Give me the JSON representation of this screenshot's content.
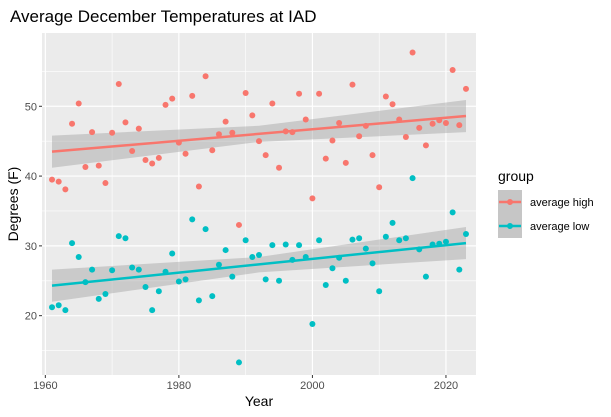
{
  "chart_data": {
    "type": "scatter",
    "title": "Average December Temperatures at IAD",
    "xlabel": "Year",
    "ylabel": "Degrees (F)",
    "xlim": [
      1959.5,
      2024.5
    ],
    "ylim": [
      11.5,
      60.5
    ],
    "x_ticks": [
      1960,
      1980,
      2000,
      2020
    ],
    "y_ticks": [
      20,
      30,
      40,
      50
    ],
    "grid": true,
    "legend": {
      "title": "group",
      "position": "right"
    },
    "series": [
      {
        "name": "average high",
        "color": "#F8766D",
        "points": [
          [
            1961,
            39.5
          ],
          [
            1962,
            39.2
          ],
          [
            1963,
            38.1
          ],
          [
            1964,
            47.5
          ],
          [
            1965,
            50.4
          ],
          [
            1966,
            41.3
          ],
          [
            1967,
            46.3
          ],
          [
            1968,
            41.5
          ],
          [
            1969,
            39.0
          ],
          [
            1970,
            46.2
          ],
          [
            1971,
            53.2
          ],
          [
            1972,
            47.7
          ],
          [
            1973,
            43.6
          ],
          [
            1974,
            46.8
          ],
          [
            1975,
            42.3
          ],
          [
            1976,
            41.8
          ],
          [
            1977,
            42.6
          ],
          [
            1978,
            50.2
          ],
          [
            1979,
            51.1
          ],
          [
            1980,
            44.8
          ],
          [
            1981,
            43.2
          ],
          [
            1982,
            51.5
          ],
          [
            1983,
            38.5
          ],
          [
            1984,
            54.3
          ],
          [
            1985,
            43.7
          ],
          [
            1986,
            46.0
          ],
          [
            1987,
            47.8
          ],
          [
            1988,
            46.2
          ],
          [
            1989,
            33.0
          ],
          [
            1990,
            51.9
          ],
          [
            1991,
            48.7
          ],
          [
            1992,
            45.0
          ],
          [
            1993,
            43.0
          ],
          [
            1994,
            50.4
          ],
          [
            1995,
            41.2
          ],
          [
            1996,
            46.4
          ],
          [
            1997,
            46.3
          ],
          [
            1998,
            51.8
          ],
          [
            1999,
            48.1
          ],
          [
            2000,
            36.8
          ],
          [
            2001,
            51.8
          ],
          [
            2002,
            42.5
          ],
          [
            2003,
            45.1
          ],
          [
            2004,
            47.6
          ],
          [
            2005,
            41.9
          ],
          [
            2006,
            53.1
          ],
          [
            2007,
            45.7
          ],
          [
            2008,
            47.2
          ],
          [
            2009,
            43.0
          ],
          [
            2010,
            38.4
          ],
          [
            2011,
            51.4
          ],
          [
            2012,
            50.3
          ],
          [
            2013,
            48.1
          ],
          [
            2014,
            45.6
          ],
          [
            2015,
            57.7
          ],
          [
            2016,
            46.9
          ],
          [
            2017,
            44.4
          ],
          [
            2018,
            47.5
          ],
          [
            2019,
            48.0
          ],
          [
            2020,
            47.6
          ],
          [
            2021,
            55.2
          ],
          [
            2022,
            47.3
          ],
          [
            2023,
            52.5
          ]
        ],
        "trend": {
          "start": [
            1961,
            43.5
          ],
          "end": [
            2023,
            48.6
          ]
        },
        "ci_band": {
          "start": [
            41.2,
            45.8
          ],
          "mid": [
            44.9,
            47.2
          ],
          "end": [
            46.3,
            50.9
          ]
        }
      },
      {
        "name": "average low",
        "color": "#00BFC4",
        "points": [
          [
            1961,
            21.2
          ],
          [
            1962,
            21.5
          ],
          [
            1963,
            20.8
          ],
          [
            1964,
            30.4
          ],
          [
            1965,
            28.4
          ],
          [
            1966,
            24.8
          ],
          [
            1967,
            26.6
          ],
          [
            1968,
            22.4
          ],
          [
            1969,
            23.1
          ],
          [
            1970,
            26.5
          ],
          [
            1971,
            31.4
          ],
          [
            1972,
            31.1
          ],
          [
            1973,
            26.9
          ],
          [
            1974,
            26.6
          ],
          [
            1975,
            24.1
          ],
          [
            1976,
            20.8
          ],
          [
            1977,
            23.5
          ],
          [
            1978,
            26.3
          ],
          [
            1979,
            28.9
          ],
          [
            1980,
            24.9
          ],
          [
            1981,
            25.2
          ],
          [
            1982,
            33.8
          ],
          [
            1983,
            22.2
          ],
          [
            1984,
            32.4
          ],
          [
            1985,
            22.8
          ],
          [
            1986,
            27.3
          ],
          [
            1987,
            29.4
          ],
          [
            1988,
            25.6
          ],
          [
            1989,
            13.3
          ],
          [
            1990,
            30.8
          ],
          [
            1991,
            28.4
          ],
          [
            1992,
            28.7
          ],
          [
            1993,
            25.2
          ],
          [
            1994,
            30.1
          ],
          [
            1995,
            25.0
          ],
          [
            1996,
            30.2
          ],
          [
            1997,
            28.0
          ],
          [
            1998,
            30.1
          ],
          [
            1999,
            28.4
          ],
          [
            2000,
            18.8
          ],
          [
            2001,
            30.8
          ],
          [
            2002,
            24.4
          ],
          [
            2003,
            26.8
          ],
          [
            2004,
            28.3
          ],
          [
            2005,
            25.0
          ],
          [
            2006,
            30.9
          ],
          [
            2007,
            31.1
          ],
          [
            2008,
            29.6
          ],
          [
            2009,
            27.5
          ],
          [
            2010,
            23.5
          ],
          [
            2011,
            31.3
          ],
          [
            2012,
            33.3
          ],
          [
            2013,
            30.8
          ],
          [
            2014,
            31.1
          ],
          [
            2015,
            39.7
          ],
          [
            2016,
            29.5
          ],
          [
            2017,
            25.6
          ],
          [
            2018,
            30.2
          ],
          [
            2019,
            30.3
          ],
          [
            2020,
            30.6
          ],
          [
            2021,
            34.8
          ],
          [
            2022,
            26.6
          ],
          [
            2023,
            31.7
          ]
        ],
        "trend": {
          "start": [
            1961,
            24.3
          ],
          "end": [
            2023,
            30.4
          ]
        },
        "ci_band": {
          "start": [
            22.0,
            26.6
          ],
          "mid": [
            26.2,
            28.4
          ],
          "end": [
            28.1,
            32.7
          ]
        }
      }
    ]
  }
}
